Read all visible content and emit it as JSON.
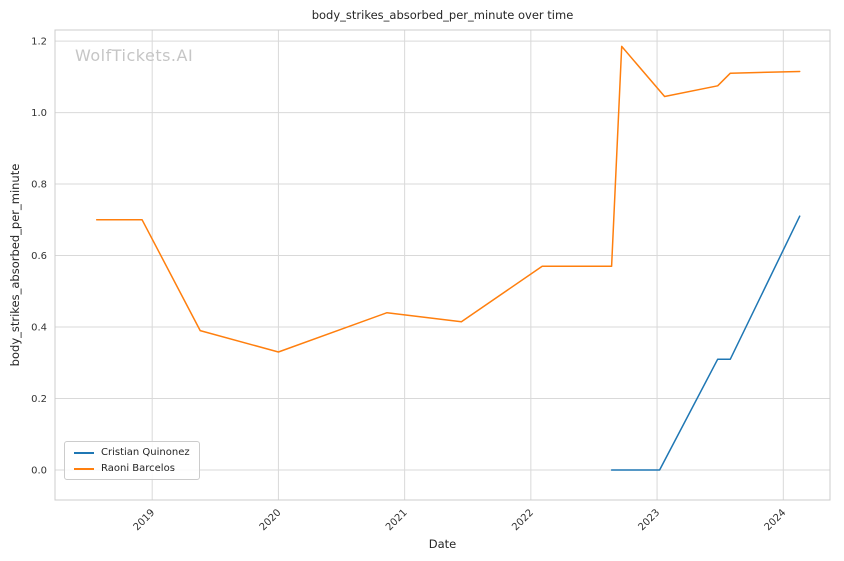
{
  "chart_data": {
    "type": "line",
    "title": "body_strikes_absorbed_per_minute over time",
    "xlabel": "Date",
    "ylabel": "body_strikes_absorbed_per_minute",
    "watermark": "WolfTickets.AI",
    "grid": true,
    "legend_position": "lower left",
    "xlim": [
      2018.23,
      2024.37
    ],
    "ylim": [
      -0.084,
      1.231
    ],
    "x_ticks": {
      "values": [
        2019,
        2020,
        2021,
        2022,
        2023,
        2024
      ],
      "labels": [
        "2019",
        "2020",
        "2021",
        "2022",
        "2023",
        "2024"
      ]
    },
    "y_ticks": {
      "values": [
        0.0,
        0.2,
        0.4,
        0.6,
        0.8,
        1.0,
        1.2
      ],
      "labels": [
        "0.0",
        "0.2",
        "0.4",
        "0.6",
        "0.8",
        "1.0",
        "1.2"
      ]
    },
    "series": [
      {
        "name": "Cristian Quinonez",
        "color": "#1f77b4",
        "x": [
          2022.64,
          2023.02,
          2023.48,
          2023.58,
          2024.13
        ],
        "y": [
          0.0,
          0.0,
          0.31,
          0.31,
          0.71
        ]
      },
      {
        "name": "Raoni Barcelos",
        "color": "#ff7f0e",
        "x": [
          2018.56,
          2018.92,
          2019.38,
          2020.0,
          2020.86,
          2021.45,
          2022.09,
          2022.64,
          2022.72,
          2023.06,
          2023.48,
          2023.58,
          2024.13
        ],
        "y": [
          0.7,
          0.7,
          0.39,
          0.33,
          0.44,
          0.415,
          0.57,
          0.57,
          1.185,
          1.045,
          1.075,
          1.11,
          1.115
        ]
      }
    ]
  }
}
